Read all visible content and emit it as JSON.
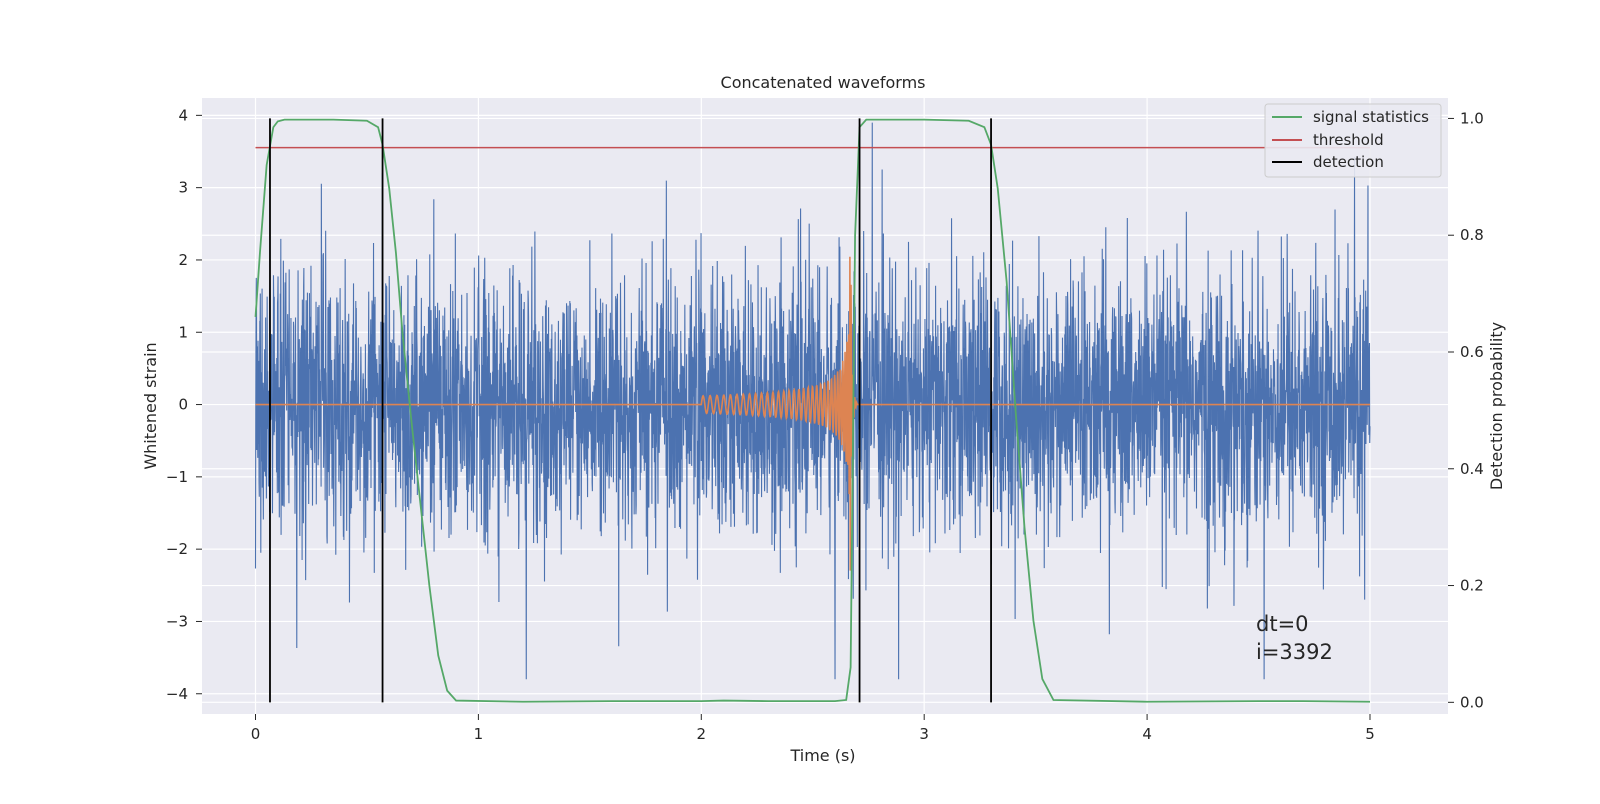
{
  "chart_data": {
    "type": "line",
    "title": "Concatenated waveforms",
    "xlabel": "Time (s)",
    "ylabel_left": "Whitened strain",
    "ylabel_right": "Detection probability",
    "xlim": [
      -0.24,
      5.35
    ],
    "ylim_left": [
      -4.28,
      4.24
    ],
    "ylim_right": [
      -0.02,
      1.035
    ],
    "x_ticks": [
      0,
      1,
      2,
      3,
      4,
      5
    ],
    "x_tick_labels": [
      "0",
      "1",
      "2",
      "3",
      "4",
      "5"
    ],
    "y_ticks_left": [
      -4,
      -3,
      -2,
      -1,
      0,
      1,
      2,
      3,
      4
    ],
    "y_tick_labels_left": [
      "−4",
      "−3",
      "−2",
      "−1",
      "0",
      "1",
      "2",
      "3",
      "4"
    ],
    "y_ticks_right": [
      0.0,
      0.2,
      0.4,
      0.6,
      0.8,
      1.0
    ],
    "y_tick_labels_right": [
      "0.0",
      "0.2",
      "0.4",
      "0.6",
      "0.8",
      "1.0"
    ],
    "grid": true,
    "legend_position": "top-right",
    "annotation_lines": [
      "dt=0",
      "i=3392"
    ],
    "colors": {
      "background": "#eaeaf2",
      "grid": "#ffffff",
      "noise": "#4c72b0",
      "injection": "#dd8452",
      "signal_statistics": "#55a868",
      "threshold": "#c44e52",
      "detection": "#000000"
    },
    "series": [
      {
        "name": "",
        "axis": "left",
        "kind": "whitened noisy strain",
        "x_range": [
          0,
          5
        ],
        "typical_band": [
          -1.5,
          1.5
        ],
        "peak_range": [
          -3.8,
          3.9
        ]
      },
      {
        "name": "",
        "axis": "left",
        "kind": "injected chirp waveform",
        "x_range": [
          0,
          5
        ],
        "chirp_start": 2.0,
        "merger_time": 2.67,
        "peak_amplitude": 2.3
      },
      {
        "name": "signal statistics",
        "axis": "right",
        "x": [
          0,
          0.02,
          0.05,
          0.08,
          0.1,
          0.13,
          0.2,
          0.35,
          0.5,
          0.55,
          0.57,
          0.6,
          0.63,
          0.66,
          0.7,
          0.74,
          0.78,
          0.82,
          0.86,
          0.9,
          1.2,
          1.6,
          2.0,
          2.1,
          2.3,
          2.5,
          2.6,
          2.65,
          2.67,
          2.69,
          2.71,
          2.74,
          2.8,
          3.0,
          3.2,
          3.27,
          3.3,
          3.33,
          3.37,
          3.41,
          3.45,
          3.49,
          3.53,
          3.58,
          4.0,
          4.5,
          4.7,
          5.0
        ],
        "values": [
          0.66,
          0.77,
          0.92,
          0.985,
          0.995,
          0.998,
          0.998,
          0.998,
          0.996,
          0.985,
          0.955,
          0.88,
          0.77,
          0.63,
          0.48,
          0.34,
          0.2,
          0.08,
          0.02,
          0.003,
          0.001,
          0.002,
          0.002,
          0.003,
          0.002,
          0.002,
          0.002,
          0.004,
          0.06,
          0.8,
          0.985,
          0.998,
          0.998,
          0.998,
          0.996,
          0.985,
          0.955,
          0.88,
          0.72,
          0.5,
          0.3,
          0.14,
          0.04,
          0.004,
          0.001,
          0.002,
          0.002,
          0.001
        ]
      },
      {
        "name": "threshold",
        "axis": "right",
        "x": [
          0,
          5
        ],
        "values": [
          0.95,
          0.95
        ]
      },
      {
        "name": "detection",
        "axis": "right",
        "vlines_x": [
          0.065,
          0.57,
          2.71,
          3.3
        ],
        "ymin": 0.0,
        "ymax": 1.0
      }
    ]
  }
}
